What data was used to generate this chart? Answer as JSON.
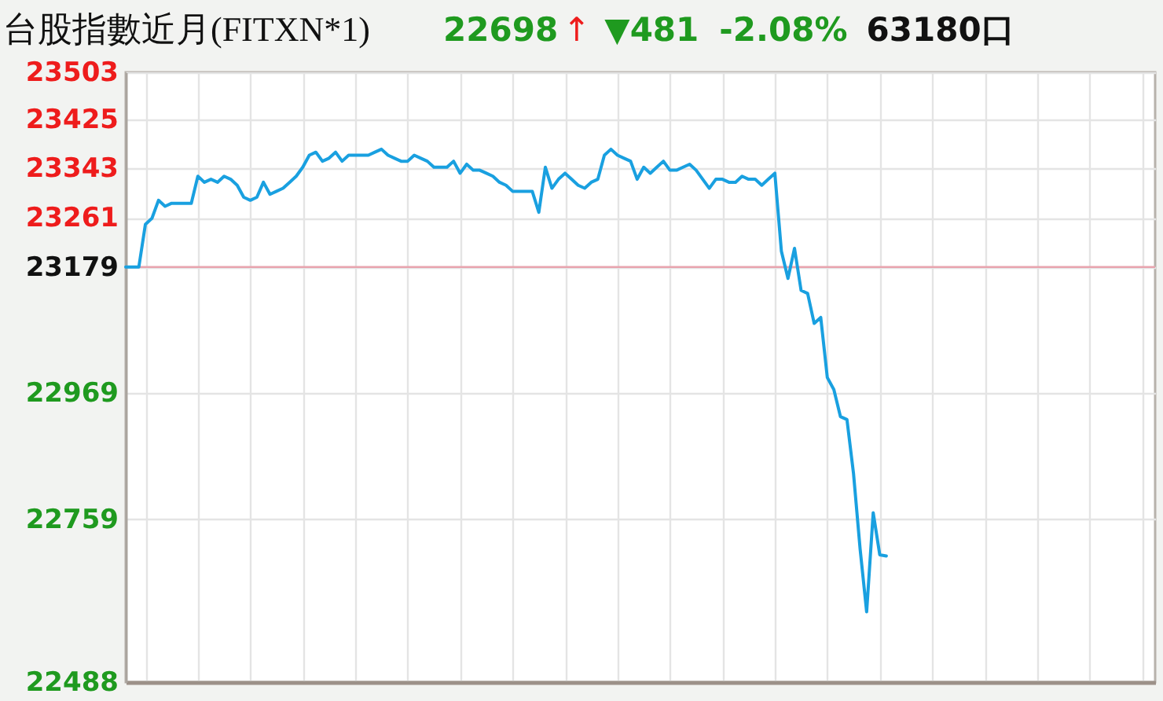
{
  "chart_data": {
    "type": "line",
    "title": "台股指數近月(FITXN*1)",
    "annotations": [
      "22698",
      "↑",
      "▼481",
      "-2.08%",
      "63180口"
    ],
    "categories": [
      null,
      null,
      null,
      null,
      null,
      null,
      null,
      null,
      null,
      null,
      null,
      null,
      null,
      null,
      null,
      null,
      null,
      null,
      null,
      null,
      null,
      null,
      null,
      null,
      null,
      null,
      null,
      null,
      null,
      null,
      null,
      null,
      null,
      null,
      null,
      null,
      null,
      null,
      null,
      null,
      null,
      null,
      null,
      null,
      null,
      null,
      null,
      null,
      null,
      null,
      null,
      null,
      null,
      null,
      null,
      null,
      null,
      null,
      null,
      null,
      null,
      null,
      null,
      null,
      null,
      null,
      null,
      null,
      null,
      null,
      null,
      null,
      null,
      null,
      null,
      null,
      null,
      null,
      null,
      null,
      null,
      null,
      null,
      null,
      null,
      null,
      null,
      null,
      null,
      null,
      null,
      null,
      null,
      null,
      null,
      null,
      null,
      null,
      null,
      null,
      null,
      null,
      null,
      null,
      null,
      null,
      null,
      null,
      null,
      null,
      null,
      null,
      null,
      null,
      null,
      null,
      null,
      null,
      null,
      null,
      null,
      null,
      null,
      null,
      null,
      null,
      null,
      null,
      null,
      null,
      null,
      null,
      null,
      null,
      null,
      null,
      null,
      null,
      null,
      null,
      null,
      null,
      null,
      null,
      null,
      null,
      null,
      null,
      null,
      null,
      null,
      null,
      null,
      null,
      null,
      null,
      null,
      null
    ],
    "series": [
      {
        "color": "#19a0e0",
        "values": [
          23179,
          23179,
          23179,
          23250,
          23260,
          23290,
          23280,
          23285,
          23285,
          23285,
          23285,
          23330,
          23320,
          23325,
          23320,
          23330,
          23325,
          23315,
          23295,
          23290,
          23295,
          23320,
          23300,
          23305,
          23310,
          23320,
          23330,
          23345,
          23365,
          23370,
          23355,
          23360,
          23370,
          23355,
          23365,
          23365,
          23365,
          23365,
          23370,
          23375,
          23365,
          23360,
          23355,
          23355,
          23365,
          23360,
          23355,
          23345,
          23345,
          23345,
          23355,
          23335,
          23350,
          23340,
          23340,
          23335,
          23330,
          23320,
          23315,
          23305,
          23305,
          23305,
          23305,
          23270,
          23345,
          23310,
          23325,
          23335,
          23325,
          23315,
          23310,
          23320,
          23325,
          23365,
          23375,
          23365,
          23360,
          23355,
          23325,
          23345,
          23335,
          23345,
          23355,
          23340,
          23340,
          23345,
          23350,
          23340,
          23325,
          23310,
          23325,
          23325,
          23320,
          23320,
          23330,
          23325,
          23325,
          23315,
          23325,
          23335,
          23205,
          23160,
          23210,
          23140,
          23135,
          23085,
          23095,
          22995,
          22975,
          22930,
          22925,
          22835,
          22710,
          22605,
          22770,
          22700,
          22698,
          null,
          null,
          null,
          null,
          null,
          null,
          null,
          null,
          null,
          null,
          null,
          null,
          null,
          null,
          null,
          null,
          null,
          null,
          null,
          null,
          null,
          null,
          null,
          null,
          null,
          null,
          null,
          null,
          null,
          null,
          null,
          null,
          null,
          null,
          null,
          null,
          null,
          null,
          null,
          null,
          null
        ]
      }
    ],
    "ylim": [
      22488,
      23503
    ],
    "yticks": [
      22488,
      22759,
      22969,
      23179,
      23261,
      23343,
      23425,
      23503
    ],
    "ref_lines": [
      {
        "axis": "y",
        "value": 23179,
        "color": "#e8a4ae"
      }
    ],
    "grid": true,
    "tick_labels": "y"
  }
}
